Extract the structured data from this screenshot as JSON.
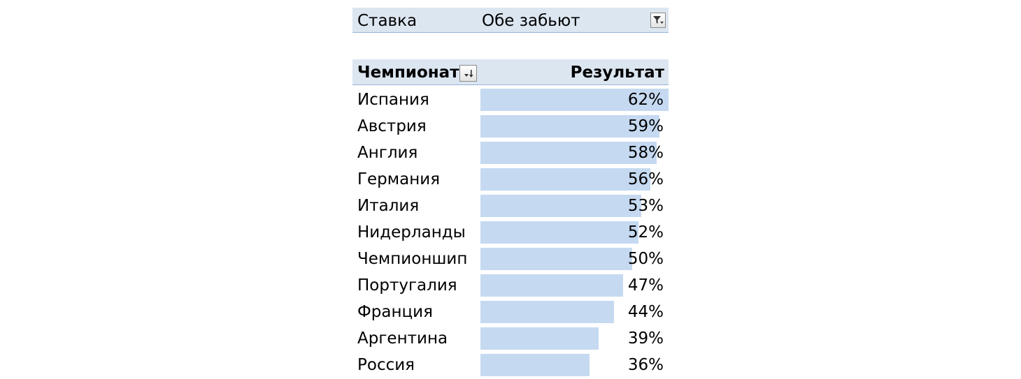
{
  "filter": {
    "label": "Ставка",
    "value": "Обе забьют",
    "icon": "filter-icon"
  },
  "header": {
    "category_label": "Чемпионат",
    "sort_icon": "sort-icon",
    "value_label": "Результат"
  },
  "colors": {
    "header_background": "#dce6f1",
    "bar": "#c5d9f1",
    "border": "#95b3d7"
  },
  "chart_data": {
    "type": "bar",
    "orientation": "horizontal",
    "data_bars_max": 62,
    "categories": [
      "Испания",
      "Австрия",
      "Англия",
      "Германия",
      "Италия",
      "Нидерланды",
      "Чемпионшип",
      "Португалия",
      "Франция",
      "Аргентина",
      "Россия"
    ],
    "values": [
      62,
      59,
      58,
      56,
      53,
      52,
      50,
      47,
      44,
      39,
      36
    ],
    "value_labels": [
      "62%",
      "59%",
      "58%",
      "56%",
      "53%",
      "52%",
      "50%",
      "47%",
      "44%",
      "39%",
      "36%"
    ]
  }
}
